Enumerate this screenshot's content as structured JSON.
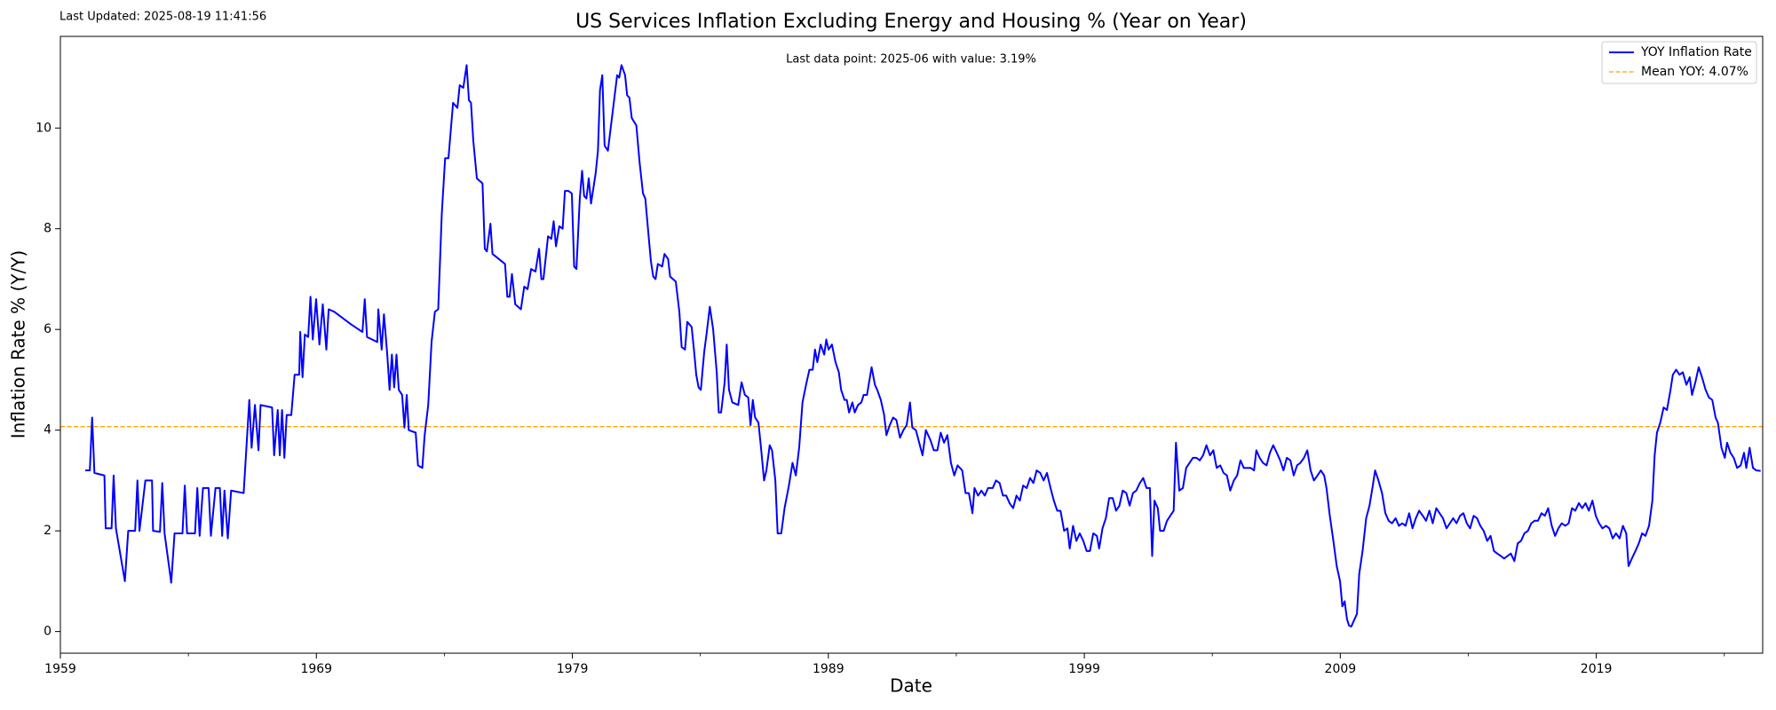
{
  "chart_data": {
    "type": "line",
    "title": "US Services Inflation Excluding Energy and Housing % (Year on Year)",
    "subtitle": "Last Updated: 2025-08-19 11:41:56",
    "annotation": "Last data point: 2025-06 with value: 3.19%",
    "xlabel": "Date",
    "ylabel": "Inflation Rate % (Y/Y)",
    "xlim": [
      1959,
      2025.5
    ],
    "ylim": [
      -0.43,
      11.82
    ],
    "xticks": [
      1959,
      1969,
      1979,
      1989,
      1999,
      2009,
      2019
    ],
    "xminorticks": [
      1964,
      1974,
      1984,
      1994,
      2004,
      2014,
      2024
    ],
    "yticks": [
      0,
      2,
      4,
      6,
      8,
      10
    ],
    "grid": false,
    "legend": "upper right",
    "mean_line": {
      "name": "Mean YOY: 4.07%",
      "value": 4.07,
      "color": "#ffa500"
    },
    "x": [
      1959.97,
      1960.15,
      1960.24,
      1960.33,
      1960.72,
      1960.77,
      1961.0,
      1961.08,
      1961.17,
      1961.52,
      1961.65,
      1961.92,
      1962.01,
      1962.09,
      1962.32,
      1962.58,
      1962.62,
      1962.89,
      1962.98,
      1963.07,
      1963.33,
      1963.46,
      1963.77,
      1963.86,
      1963.95,
      1964.26,
      1964.35,
      1964.44,
      1964.57,
      1964.79,
      1964.88,
      1965.06,
      1965.23,
      1965.32,
      1965.41,
      1965.54,
      1965.67,
      1966.16,
      1966.38,
      1966.47,
      1966.6,
      1966.74,
      1966.82,
      1967.27,
      1967.35,
      1967.49,
      1967.57,
      1967.66,
      1967.75,
      1967.84,
      1968.02,
      1968.15,
      1968.33,
      1968.37,
      1968.46,
      1968.55,
      1968.68,
      1968.77,
      1968.86,
      1968.99,
      1969.12,
      1969.25,
      1969.39,
      1969.48,
      1969.7,
      1970.36,
      1970.8,
      1970.89,
      1970.98,
      1971.38,
      1971.42,
      1971.55,
      1971.64,
      1971.77,
      1971.86,
      1971.95,
      1972.04,
      1972.13,
      1972.22,
      1972.35,
      1972.44,
      1972.53,
      1972.61,
      1972.88,
      1972.97,
      1973.14,
      1973.23,
      1973.37,
      1973.5,
      1973.63,
      1973.76,
      1973.9,
      1974.03,
      1974.16,
      1974.34,
      1974.51,
      1974.6,
      1974.74,
      1974.87,
      1974.96,
      1975.04,
      1975.13,
      1975.27,
      1975.49,
      1975.58,
      1975.66,
      1975.8,
      1975.88,
      1976.37,
      1976.46,
      1976.55,
      1976.64,
      1976.77,
      1976.99,
      1977.12,
      1977.25,
      1977.39,
      1977.56,
      1977.7,
      1977.79,
      1977.87,
      1978.05,
      1978.18,
      1978.27,
      1978.36,
      1978.49,
      1978.62,
      1978.71,
      1978.85,
      1978.98,
      1979.07,
      1979.16,
      1979.29,
      1979.38,
      1979.46,
      1979.55,
      1979.64,
      1979.73,
      1979.91,
      1980.0,
      1980.08,
      1980.17,
      1980.26,
      1980.39,
      1980.57,
      1980.75,
      1980.83,
      1980.92,
      1981.06,
      1981.14,
      1981.23,
      1981.32,
      1981.5,
      1981.63,
      1981.76,
      1981.85,
      1981.98,
      1982.07,
      1982.16,
      1982.25,
      1982.34,
      1982.51,
      1982.6,
      1982.74,
      1982.82,
      1983.04,
      1983.18,
      1983.27,
      1983.4,
      1983.49,
      1983.66,
      1983.75,
      1983.84,
      1983.93,
      1984.02,
      1984.15,
      1984.24,
      1984.37,
      1984.5,
      1984.64,
      1984.72,
      1984.81,
      1984.95,
      1985.03,
      1985.12,
      1985.25,
      1985.48,
      1985.61,
      1985.74,
      1985.87,
      1985.96,
      1986.05,
      1986.14,
      1986.27,
      1986.36,
      1986.49,
      1986.58,
      1986.71,
      1986.8,
      1986.93,
      1987.02,
      1987.16,
      1987.29,
      1987.46,
      1987.6,
      1987.73,
      1987.86,
      1987.99,
      1988.13,
      1988.26,
      1988.39,
      1988.48,
      1988.57,
      1988.7,
      1988.84,
      1988.92,
      1989.01,
      1989.14,
      1989.28,
      1989.41,
      1989.5,
      1989.63,
      1989.72,
      1989.81,
      1989.94,
      1990.03,
      1990.16,
      1990.29,
      1990.38,
      1990.51,
      1990.69,
      1990.82,
      1990.91,
      1991.05,
      1991.18,
      1991.27,
      1991.4,
      1991.53,
      1991.66,
      1991.8,
      1991.93,
      1992.06,
      1992.19,
      1992.28,
      1992.42,
      1992.55,
      1992.68,
      1992.81,
      1992.99,
      1993.12,
      1993.26,
      1993.39,
      1993.52,
      1993.65,
      1993.79,
      1993.92,
      1994.05,
      1994.23,
      1994.36,
      1994.49,
      1994.63,
      1994.71,
      1994.85,
      1994.98,
      1995.11,
      1995.24,
      1995.42,
      1995.55,
      1995.69,
      1995.82,
      1995.95,
      1996.08,
      1996.22,
      1996.35,
      1996.48,
      1996.61,
      1996.75,
      1996.88,
      1997.01,
      1997.14,
      1997.28,
      1997.41,
      1997.54,
      1997.68,
      1997.81,
      1997.94,
      1998.07,
      1998.21,
      1998.34,
      1998.43,
      1998.56,
      1998.69,
      1998.82,
      1998.96,
      1999.09,
      1999.22,
      1999.35,
      1999.49,
      1999.58,
      1999.71,
      1999.84,
      1999.97,
      2000.11,
      2000.24,
      2000.37,
      2000.5,
      2000.64,
      2000.77,
      2000.9,
      2001.03,
      2001.17,
      2001.3,
      2001.43,
      2001.56,
      2001.65,
      2001.74,
      2001.87,
      2001.96,
      2002.1,
      2002.23,
      2002.36,
      2002.49,
      2002.58,
      2002.71,
      2002.85,
      2002.98,
      2003.11,
      2003.24,
      2003.38,
      2003.51,
      2003.64,
      2003.77,
      2003.91,
      2004.04,
      2004.17,
      2004.31,
      2004.44,
      2004.57,
      2004.7,
      2004.84,
      2004.97,
      2005.1,
      2005.23,
      2005.5,
      2005.63,
      2005.72,
      2005.85,
      2005.98,
      2006.12,
      2006.25,
      2006.38,
      2006.52,
      2006.65,
      2006.78,
      2006.91,
      2007.05,
      2007.18,
      2007.31,
      2007.44,
      2007.58,
      2007.71,
      2007.84,
      2007.97,
      2008.11,
      2008.24,
      2008.37,
      2008.46,
      2008.59,
      2008.73,
      2008.86,
      2008.99,
      2009.08,
      2009.17,
      2009.26,
      2009.34,
      2009.43,
      2009.56,
      2009.65,
      2009.74,
      2009.87,
      2010.01,
      2010.14,
      2010.27,
      2010.36,
      2010.49,
      2010.63,
      2010.76,
      2010.89,
      2011.02,
      2011.16,
      2011.29,
      2011.42,
      2011.55,
      2011.69,
      2011.82,
      2011.95,
      2012.08,
      2012.22,
      2012.35,
      2012.48,
      2012.61,
      2012.75,
      2012.88,
      2013.01,
      2013.15,
      2013.28,
      2013.41,
      2013.54,
      2013.68,
      2013.81,
      2013.94,
      2014.07,
      2014.21,
      2014.34,
      2014.47,
      2014.6,
      2014.74,
      2014.87,
      2015.0,
      2015.13,
      2015.27,
      2015.4,
      2015.53,
      2015.66,
      2015.8,
      2015.93,
      2016.06,
      2016.19,
      2016.33,
      2016.46,
      2016.59,
      2016.72,
      2016.86,
      2016.99,
      2017.12,
      2017.26,
      2017.39,
      2017.52,
      2017.65,
      2017.79,
      2017.92,
      2018.05,
      2018.18,
      2018.32,
      2018.45,
      2018.58,
      2018.71,
      2018.85,
      2018.98,
      2019.11,
      2019.24,
      2019.38,
      2019.51,
      2019.64,
      2019.77,
      2019.91,
      2020.04,
      2020.17,
      2020.26,
      2020.39,
      2020.53,
      2020.66,
      2020.79,
      2020.92,
      2021.06,
      2021.19,
      2021.28,
      2021.37,
      2021.5,
      2021.63,
      2021.76,
      2021.9,
      2021.99,
      2022.12,
      2022.25,
      2022.38,
      2022.52,
      2022.65,
      2022.74,
      2022.87,
      2023.0,
      2023.13,
      2023.27,
      2023.4,
      2023.53,
      2023.66,
      2023.75,
      2023.89,
      2024.02,
      2024.11,
      2024.24,
      2024.37,
      2024.5,
      2024.64,
      2024.77,
      2024.86,
      2024.99,
      2025.12,
      2025.25,
      2025.42
    ],
    "series": [
      {
        "name": "YOY Inflation Rate",
        "color": "#0000ff",
        "values": [
          3.2,
          3.2,
          4.25,
          3.15,
          3.1,
          2.05,
          2.05,
          3.1,
          2.05,
          1.0,
          2.0,
          2.0,
          3.0,
          2.0,
          3.0,
          3.0,
          2.0,
          1.98,
          2.95,
          1.95,
          0.97,
          1.95,
          1.95,
          2.9,
          1.95,
          1.95,
          2.85,
          1.9,
          2.85,
          2.85,
          1.9,
          2.85,
          2.85,
          1.9,
          2.8,
          1.85,
          2.8,
          2.75,
          4.6,
          3.65,
          4.5,
          3.6,
          4.5,
          4.45,
          3.5,
          4.4,
          3.5,
          4.4,
          3.45,
          4.3,
          4.3,
          5.1,
          5.1,
          5.95,
          5.05,
          5.9,
          5.85,
          6.65,
          5.8,
          6.6,
          5.7,
          6.5,
          5.6,
          6.4,
          6.35,
          6.1,
          5.95,
          6.6,
          5.85,
          5.75,
          6.4,
          5.6,
          6.3,
          5.5,
          4.8,
          5.5,
          4.85,
          5.5,
          4.8,
          4.7,
          4.05,
          4.7,
          4.0,
          3.95,
          3.3,
          3.25,
          3.9,
          4.5,
          5.75,
          6.35,
          6.4,
          8.3,
          9.4,
          9.4,
          10.5,
          10.4,
          10.85,
          10.8,
          11.25,
          10.55,
          10.5,
          9.75,
          9.0,
          8.9,
          7.6,
          7.55,
          8.1,
          7.5,
          7.3,
          6.65,
          6.65,
          7.1,
          6.5,
          6.4,
          6.85,
          6.8,
          7.2,
          7.15,
          7.6,
          7.0,
          7.0,
          7.85,
          7.8,
          8.15,
          7.65,
          8.05,
          8.0,
          8.75,
          8.75,
          8.7,
          7.25,
          7.2,
          8.6,
          9.15,
          8.65,
          8.6,
          9.0,
          8.5,
          9.1,
          9.55,
          10.75,
          11.05,
          9.65,
          9.55,
          10.3,
          11.05,
          11.0,
          11.25,
          11.05,
          10.65,
          10.6,
          10.2,
          10.05,
          9.3,
          8.7,
          8.6,
          7.85,
          7.35,
          7.05,
          7.0,
          7.3,
          7.25,
          7.5,
          7.4,
          7.05,
          6.95,
          6.35,
          5.65,
          5.6,
          6.15,
          6.05,
          5.6,
          5.1,
          4.85,
          4.8,
          5.55,
          5.9,
          6.45,
          6.0,
          5.15,
          4.35,
          4.35,
          4.95,
          5.7,
          4.8,
          4.55,
          4.5,
          4.95,
          4.7,
          4.65,
          4.1,
          4.6,
          4.25,
          4.15,
          3.7,
          3.0,
          3.2,
          3.7,
          3.6,
          3.0,
          1.95,
          1.95,
          2.45,
          2.9,
          3.35,
          3.1,
          3.65,
          4.55,
          4.9,
          5.2,
          5.2,
          5.6,
          5.35,
          5.7,
          5.5,
          5.8,
          5.6,
          5.7,
          5.35,
          5.15,
          4.8,
          4.6,
          4.6,
          4.35,
          4.55,
          4.35,
          4.5,
          4.55,
          4.7,
          4.7,
          5.25,
          4.9,
          4.8,
          4.6,
          4.3,
          3.9,
          4.1,
          4.25,
          4.2,
          3.85,
          4.0,
          4.1,
          4.55,
          4.05,
          4.0,
          3.75,
          3.5,
          4.0,
          3.8,
          3.6,
          3.6,
          3.95,
          3.75,
          3.9,
          3.35,
          3.1,
          3.3,
          3.2,
          2.75,
          2.75,
          2.35,
          2.85,
          2.7,
          2.8,
          2.7,
          2.85,
          2.85,
          3.0,
          2.95,
          2.7,
          2.7,
          2.55,
          2.45,
          2.7,
          2.6,
          2.9,
          2.85,
          3.05,
          2.95,
          3.2,
          3.15,
          3.0,
          3.15,
          2.85,
          2.6,
          2.4,
          2.4,
          2.0,
          2.05,
          1.65,
          2.1,
          1.8,
          1.95,
          1.8,
          1.6,
          1.6,
          1.95,
          1.9,
          1.65,
          2.05,
          2.25,
          2.65,
          2.65,
          2.4,
          2.5,
          2.8,
          2.75,
          2.5,
          2.75,
          2.8,
          2.95,
          3.05,
          2.85,
          2.85,
          1.5,
          2.6,
          2.45,
          2.0,
          2.0,
          2.2,
          2.3,
          2.4,
          3.75,
          2.8,
          2.85,
          3.25,
          3.35,
          3.45,
          3.45,
          3.4,
          3.5,
          3.7,
          3.5,
          3.6,
          3.25,
          3.3,
          3.15,
          3.1,
          2.8,
          3.0,
          3.1,
          3.4,
          3.25,
          3.25,
          3.2,
          3.6,
          3.45,
          3.35,
          3.3,
          3.55,
          3.7,
          3.55,
          3.4,
          3.2,
          3.45,
          3.4,
          3.1,
          3.3,
          3.35,
          3.45,
          3.6,
          3.2,
          3.0,
          3.1,
          3.2,
          3.1,
          2.85,
          2.3,
          1.8,
          1.3,
          1.0,
          0.5,
          0.6,
          0.25,
          0.12,
          0.1,
          0.25,
          0.35,
          1.15,
          1.6,
          2.25,
          2.5,
          2.9,
          3.2,
          3.0,
          2.75,
          2.35,
          2.2,
          2.15,
          2.25,
          2.1,
          2.15,
          2.1,
          2.35,
          2.05,
          2.25,
          2.4,
          2.3,
          2.2,
          2.4,
          2.15,
          2.45,
          2.35,
          2.25,
          2.05,
          2.15,
          2.25,
          2.15,
          2.3,
          2.35,
          2.15,
          2.05,
          2.3,
          2.25,
          2.1,
          2.0,
          1.8,
          1.9,
          1.6,
          1.55,
          1.5,
          1.45,
          1.5,
          1.55,
          1.4,
          1.75,
          1.8,
          1.95,
          2.0,
          2.15,
          2.2,
          2.2,
          2.35,
          2.3,
          2.45,
          2.1,
          1.9,
          2.05,
          2.15,
          2.1,
          2.15,
          2.45,
          2.4,
          2.55,
          2.45,
          2.55,
          2.4,
          2.6,
          2.3,
          2.15,
          2.05,
          2.1,
          2.05,
          1.85,
          1.95,
          1.85,
          2.1,
          1.95,
          1.3,
          1.45,
          1.6,
          1.75,
          1.95,
          1.9,
          2.1,
          2.6,
          3.5,
          3.95,
          4.15,
          4.45,
          4.4,
          4.8,
          5.1,
          5.2,
          5.1,
          5.15,
          4.9,
          5.05,
          4.7,
          4.95,
          5.25,
          5.05,
          4.8,
          4.65,
          4.6,
          4.25,
          4.15,
          3.65,
          3.45,
          3.75,
          3.55,
          3.45,
          3.25,
          3.3,
          3.55,
          3.25,
          3.65,
          3.25,
          3.2,
          3.19
        ]
      }
    ]
  }
}
